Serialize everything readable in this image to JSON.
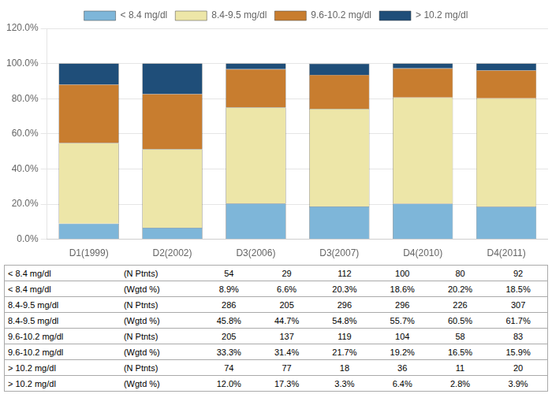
{
  "chart_data": {
    "type": "bar",
    "stacked": true,
    "categories": [
      "D1(1999)",
      "D2(2002)",
      "D3(2006)",
      "D3(2007)",
      "D4(2010)",
      "D4(2011)"
    ],
    "series": [
      {
        "name": "< 8.4 mg/dl",
        "color": "#7EB6D9",
        "values": [
          8.9,
          6.6,
          20.3,
          18.6,
          20.2,
          18.5
        ]
      },
      {
        "name": "8.4-9.5 mg/dl",
        "color": "#EDE6A8",
        "values": [
          45.8,
          44.7,
          54.8,
          55.7,
          60.5,
          61.7
        ]
      },
      {
        "name": "9.6-10.2 mg/dl",
        "color": "#C87D2F",
        "values": [
          33.3,
          31.4,
          21.7,
          19.2,
          16.5,
          15.9
        ]
      },
      {
        "name": "> 10.2 mg/dl",
        "color": "#1F4E79",
        "values": [
          12.0,
          17.3,
          3.3,
          6.4,
          2.8,
          3.9
        ]
      }
    ],
    "ylim": [
      0,
      120
    ],
    "yticks": [
      {
        "value": 0,
        "label": "0.0%"
      },
      {
        "value": 20,
        "label": "20.0%"
      },
      {
        "value": 40,
        "label": "40.0%"
      },
      {
        "value": 60,
        "label": "60.0%"
      },
      {
        "value": 80,
        "label": "80.0%"
      },
      {
        "value": 100,
        "label": "100.0%"
      },
      {
        "value": 120,
        "label": "120.0%"
      }
    ],
    "grid": true,
    "legend": "top",
    "table": [
      [
        "< 8.4 mg/dl",
        "(N Ptnts)",
        "54",
        "29",
        "112",
        "100",
        "80",
        "92"
      ],
      [
        "< 8.4 mg/dl",
        "(Wgtd %)",
        "8.9%",
        "6.6%",
        "20.3%",
        "18.6%",
        "20.2%",
        "18.5%"
      ],
      [
        "8.4-9.5 mg/dl",
        "(N Ptnts)",
        "286",
        "205",
        "296",
        "296",
        "226",
        "307"
      ],
      [
        "8.4-9.5 mg/dl",
        "(Wgtd %)",
        "45.8%",
        "44.7%",
        "54.8%",
        "55.7%",
        "60.5%",
        "61.7%"
      ],
      [
        "9.6-10.2 mg/dl",
        "(N Ptnts)",
        "205",
        "137",
        "119",
        "104",
        "58",
        "83"
      ],
      [
        "9.6-10.2 mg/dl",
        "(Wgtd %)",
        "33.3%",
        "31.4%",
        "21.7%",
        "19.2%",
        "16.5%",
        "15.9%"
      ],
      [
        "> 10.2 mg/dl",
        "(N Ptnts)",
        "74",
        "77",
        "18",
        "36",
        "11",
        "20"
      ],
      [
        "> 10.2 mg/dl",
        "(Wgtd %)",
        "12.0%",
        "17.3%",
        "3.3%",
        "6.4%",
        "2.8%",
        "3.9%"
      ]
    ]
  }
}
